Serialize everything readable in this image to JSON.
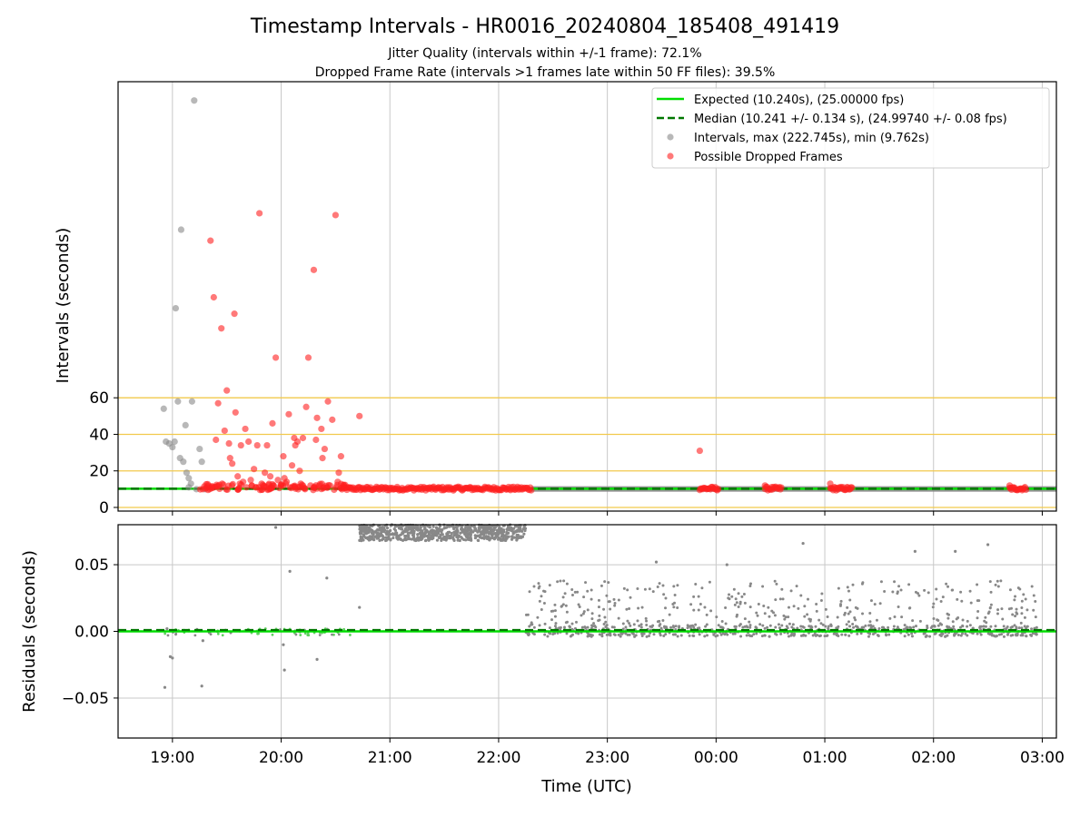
{
  "chart_data": {
    "type": "scatter",
    "title": "Timestamp Intervals - HR0016_20240804_185408_491419",
    "subtitle_lines": [
      "Jitter Quality (intervals within +/-1 frame): 72.1%",
      "Dropped Frame Rate (intervals >1 frames late within 50 FF files): 39.5%"
    ],
    "xlabel": "Time (UTC)",
    "x_ticks": [
      "19:00",
      "20:00",
      "21:00",
      "22:00",
      "23:00",
      "00:00",
      "01:00",
      "02:00",
      "03:00"
    ],
    "x_range_hours": [
      18.5,
      27.13
    ],
    "grid": true,
    "legend_position": "upper right",
    "top_panel": {
      "ylabel": "Intervals (seconds)",
      "y_ticks": [
        0,
        20,
        40,
        60
      ],
      "ylim": [
        -2,
        233
      ],
      "reference_lines": [
        0,
        20,
        40,
        60
      ],
      "legend": [
        "Expected (10.240s), (25.00000 fps)",
        "Median (10.241 +/- 0.134 s), (24.99740 +/- 0.08 fps)",
        "Intervals, max (222.745s), min (9.762s)",
        "Possible Dropped Frames"
      ],
      "expected_interval": 10.24,
      "median_interval": 10.241,
      "intervals_gray": [
        [
          18.92,
          54
        ],
        [
          18.94,
          36
        ],
        [
          18.97,
          35
        ],
        [
          19.0,
          33
        ],
        [
          19.02,
          36
        ],
        [
          19.03,
          109
        ],
        [
          19.05,
          58
        ],
        [
          19.07,
          27
        ],
        [
          19.08,
          152
        ],
        [
          19.1,
          25
        ],
        [
          19.12,
          45
        ],
        [
          19.13,
          19
        ],
        [
          19.15,
          16
        ],
        [
          19.17,
          13
        ],
        [
          19.18,
          58
        ],
        [
          19.2,
          222.7
        ],
        [
          19.25,
          32
        ],
        [
          19.27,
          25
        ],
        [
          19.3,
          10
        ],
        [
          19.15,
          11
        ],
        [
          19.22,
          10
        ]
      ],
      "dropped_frames_red": [
        [
          19.28,
          10
        ],
        [
          19.32,
          11
        ],
        [
          19.35,
          146
        ],
        [
          19.33,
          12
        ],
        [
          19.38,
          115
        ],
        [
          19.4,
          37
        ],
        [
          19.42,
          57
        ],
        [
          19.45,
          98
        ],
        [
          19.48,
          42
        ],
        [
          19.5,
          64
        ],
        [
          19.52,
          35
        ],
        [
          19.53,
          27
        ],
        [
          19.55,
          24
        ],
        [
          19.57,
          106
        ],
        [
          19.58,
          52
        ],
        [
          19.6,
          17
        ],
        [
          19.62,
          13
        ],
        [
          19.63,
          34
        ],
        [
          19.65,
          14
        ],
        [
          19.67,
          43
        ],
        [
          19.68,
          11
        ],
        [
          19.7,
          36
        ],
        [
          19.72,
          15
        ],
        [
          19.73,
          12
        ],
        [
          19.75,
          21
        ],
        [
          19.77,
          11
        ],
        [
          19.78,
          34
        ],
        [
          19.8,
          161
        ],
        [
          19.82,
          13
        ],
        [
          19.85,
          19
        ],
        [
          19.87,
          34
        ],
        [
          19.9,
          17
        ],
        [
          19.92,
          46
        ],
        [
          19.93,
          12
        ],
        [
          19.95,
          82
        ],
        [
          19.97,
          15
        ],
        [
          20.0,
          12
        ],
        [
          20.02,
          28
        ],
        [
          20.03,
          16
        ],
        [
          20.05,
          14
        ],
        [
          20.07,
          51
        ],
        [
          20.08,
          11
        ],
        [
          20.1,
          23
        ],
        [
          20.12,
          38
        ],
        [
          20.13,
          34
        ],
        [
          20.15,
          36
        ],
        [
          20.17,
          20
        ],
        [
          20.18,
          13
        ],
        [
          20.2,
          38
        ],
        [
          20.22,
          10
        ],
        [
          20.23,
          55
        ],
        [
          20.25,
          82
        ],
        [
          20.27,
          12
        ],
        [
          20.3,
          130
        ],
        [
          20.32,
          37
        ],
        [
          20.33,
          49
        ],
        [
          20.35,
          12
        ],
        [
          20.37,
          43
        ],
        [
          20.38,
          27
        ],
        [
          20.4,
          32
        ],
        [
          20.42,
          11
        ],
        [
          20.43,
          58
        ],
        [
          20.45,
          12
        ],
        [
          20.47,
          48
        ],
        [
          20.5,
          160
        ],
        [
          20.52,
          14
        ],
        [
          20.53,
          19
        ],
        [
          20.55,
          28
        ],
        [
          20.72,
          50
        ],
        [
          23.85,
          31
        ],
        [
          24.45,
          12
        ],
        [
          25.05,
          13
        ],
        [
          26.7,
          12
        ]
      ],
      "dense_dropped_segments": [
        [
          20.55,
          22.3
        ],
        [
          23.85,
          24.02
        ],
        [
          24.45,
          24.6
        ],
        [
          25.05,
          25.25
        ],
        [
          26.7,
          26.85
        ]
      ],
      "dense_gray_segment": [
        22.3,
        27.13
      ]
    },
    "bottom_panel": {
      "ylabel": "Residuals (seconds)",
      "y_ticks": [
        0.05,
        0.0,
        -0.05
      ],
      "y_tick_labels": [
        "0.05",
        "0.00",
        "−0.05"
      ],
      "ylim": [
        -0.08,
        0.08
      ],
      "expected_residual": 0.0,
      "median_residual": 0.001,
      "sparse_points": [
        [
          18.93,
          -0.042
        ],
        [
          18.95,
          0.002
        ],
        [
          18.98,
          -0.019
        ],
        [
          19.0,
          -0.02
        ],
        [
          19.27,
          -0.041
        ],
        [
          19.28,
          -0.007
        ],
        [
          19.95,
          0.078
        ],
        [
          20.02,
          -0.01
        ],
        [
          20.03,
          -0.029
        ],
        [
          20.08,
          0.045
        ],
        [
          20.33,
          -0.021
        ],
        [
          20.42,
          0.04
        ],
        [
          20.72,
          0.018
        ],
        [
          24.1,
          0.05
        ],
        [
          24.8,
          0.066
        ],
        [
          25.83,
          0.06
        ],
        [
          26.5,
          0.065
        ],
        [
          26.2,
          0.06
        ],
        [
          23.45,
          0.052
        ]
      ],
      "high_band_segment": [
        20.72,
        22.25
      ],
      "high_band_range": [
        0.068,
        0.08
      ],
      "scatter_segment": [
        22.25,
        26.95
      ],
      "scatter_range": [
        -0.005,
        0.04
      ]
    },
    "colors": {
      "expected": "#00dd00",
      "median": "#007700",
      "intervals": "#888888",
      "dropped": "#ff2020",
      "reference": "#f2c94c",
      "grid": "#c8c8c8"
    }
  }
}
